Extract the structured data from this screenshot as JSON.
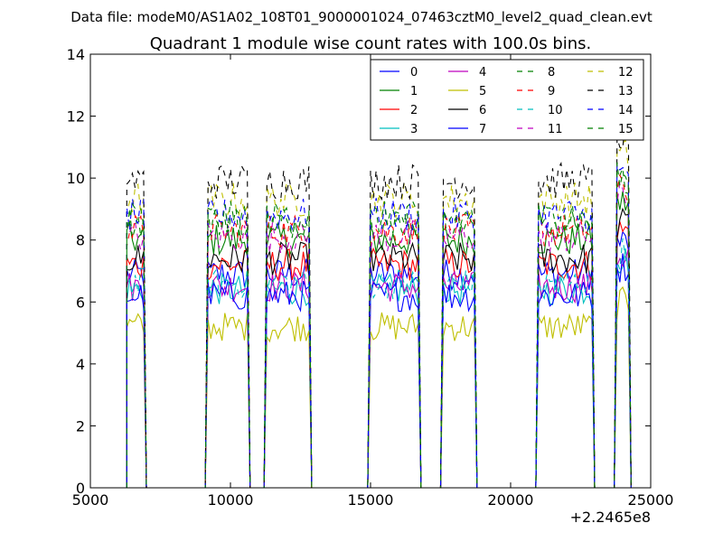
{
  "header": {
    "file_label": "Data file: modeM0/AS1A02_108T01_9000001024_07463cztM0_level2_quad_clean.evt"
  },
  "chart_data": {
    "type": "line",
    "title": "Quadrant 1 module wise count rates with 100.0s bins.",
    "xlabel": "",
    "ylabel": "",
    "x_offset_label": "+2.2465e8",
    "xlim": [
      5000,
      25000
    ],
    "ylim": [
      0,
      14
    ],
    "x_ticks": [
      5000,
      10000,
      15000,
      20000,
      25000
    ],
    "y_ticks": [
      0,
      2,
      4,
      6,
      8,
      10,
      12,
      14
    ],
    "grid": false,
    "legend": {
      "position": "top-right",
      "columns": 4
    },
    "active_intervals": [
      [
        6300,
        6900
      ],
      [
        9200,
        10600
      ],
      [
        11300,
        12800
      ],
      [
        15000,
        16700
      ],
      [
        17600,
        18700
      ],
      [
        21000,
        22900
      ],
      [
        23800,
        24200
      ]
    ],
    "series": [
      {
        "name": "0",
        "color": "#0000ff",
        "dash": "solid",
        "level": 6.9
      },
      {
        "name": "1",
        "color": "#008000",
        "dash": "solid",
        "level": 8.0
      },
      {
        "name": "2",
        "color": "#ff0000",
        "dash": "solid",
        "level": 7.2
      },
      {
        "name": "3",
        "color": "#00bfbf",
        "dash": "solid",
        "level": 6.4
      },
      {
        "name": "4",
        "color": "#bf00bf",
        "dash": "solid",
        "level": 6.5
      },
      {
        "name": "5",
        "color": "#bfbf00",
        "dash": "solid",
        "level": 5.2
      },
      {
        "name": "6",
        "color": "#000000",
        "dash": "solid",
        "level": 7.4
      },
      {
        "name": "7",
        "color": "#0000ff",
        "dash": "solid",
        "level": 6.2
      },
      {
        "name": "8",
        "color": "#008000",
        "dash": "dashed",
        "level": 8.6
      },
      {
        "name": "9",
        "color": "#ff0000",
        "dash": "dashed",
        "level": 8.3
      },
      {
        "name": "10",
        "color": "#00bfbf",
        "dash": "dashed",
        "level": 6.6
      },
      {
        "name": "11",
        "color": "#bf00bf",
        "dash": "dashed",
        "level": 8.1
      },
      {
        "name": "12",
        "color": "#bfbf00",
        "dash": "dashed",
        "level": 9.3
      },
      {
        "name": "13",
        "color": "#000000",
        "dash": "dashed",
        "level": 9.9
      },
      {
        "name": "14",
        "color": "#0000ff",
        "dash": "dashed",
        "level": 8.8
      },
      {
        "name": "15",
        "color": "#008000",
        "dash": "dashed",
        "level": 8.7
      }
    ]
  }
}
